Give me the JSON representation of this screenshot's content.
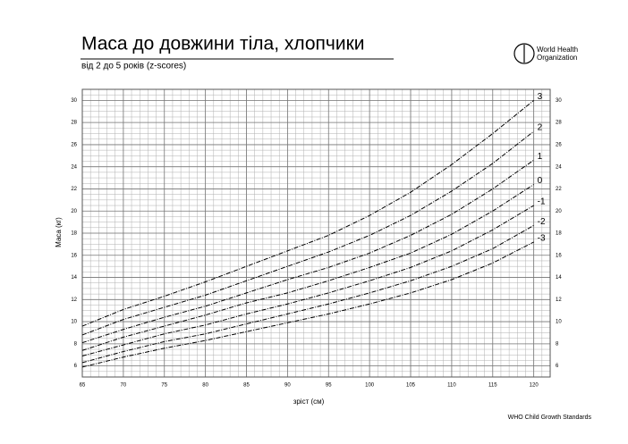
{
  "chart_data": {
    "type": "line",
    "title": "Маса до довжини тіла, хлопчики",
    "subtitle": "від 2 до 5 років (z-scores)",
    "x_label": "зріст (см)",
    "y_label": "Маса (кг)",
    "footer": "WHO Child Growth Standards",
    "logo": [
      "World Health",
      "Organization"
    ],
    "x": [
      65,
      70,
      75,
      80,
      85,
      90,
      95,
      100,
      105,
      110,
      115,
      120
    ],
    "series": [
      {
        "name": "3",
        "color": "#000000",
        "values": [
          9.6,
          11.1,
          12.3,
          13.6,
          15.0,
          16.4,
          17.8,
          19.6,
          21.7,
          24.2,
          27.0,
          30.0
        ]
      },
      {
        "name": "2",
        "color": "#000000",
        "values": [
          8.8,
          10.2,
          11.3,
          12.4,
          13.7,
          15.0,
          16.3,
          17.8,
          19.6,
          21.8,
          24.3,
          27.2
        ]
      },
      {
        "name": "1",
        "color": "#000000",
        "values": [
          8.1,
          9.3,
          10.4,
          11.4,
          12.6,
          13.8,
          14.9,
          16.2,
          17.8,
          19.7,
          22.0,
          24.6
        ]
      },
      {
        "name": "0",
        "color": "#000000",
        "values": [
          7.4,
          8.6,
          9.6,
          10.6,
          11.7,
          12.6,
          13.7,
          14.9,
          16.2,
          17.9,
          20.0,
          22.4
        ]
      },
      {
        "name": "-1",
        "color": "#000000",
        "values": [
          6.9,
          7.9,
          8.9,
          9.7,
          10.7,
          11.6,
          12.6,
          13.7,
          14.9,
          16.4,
          18.3,
          20.5
        ]
      },
      {
        "name": "-2",
        "color": "#000000",
        "values": [
          6.3,
          7.3,
          8.2,
          8.9,
          9.8,
          10.7,
          11.6,
          12.6,
          13.7,
          15.0,
          16.6,
          18.7
        ]
      },
      {
        "name": "-3",
        "color": "#000000",
        "values": [
          5.9,
          6.8,
          7.6,
          8.3,
          9.1,
          9.9,
          10.7,
          11.6,
          12.6,
          13.8,
          15.3,
          17.2
        ]
      }
    ],
    "xlim": [
      65,
      122
    ],
    "xticks": [
      65,
      70,
      75,
      80,
      85,
      90,
      95,
      100,
      105,
      110,
      115,
      120
    ],
    "ylim": [
      5,
      31
    ],
    "yticks": [
      6,
      8,
      10,
      12,
      14,
      16,
      18,
      20,
      22,
      24,
      26,
      28,
      30
    ],
    "grid": true
  }
}
